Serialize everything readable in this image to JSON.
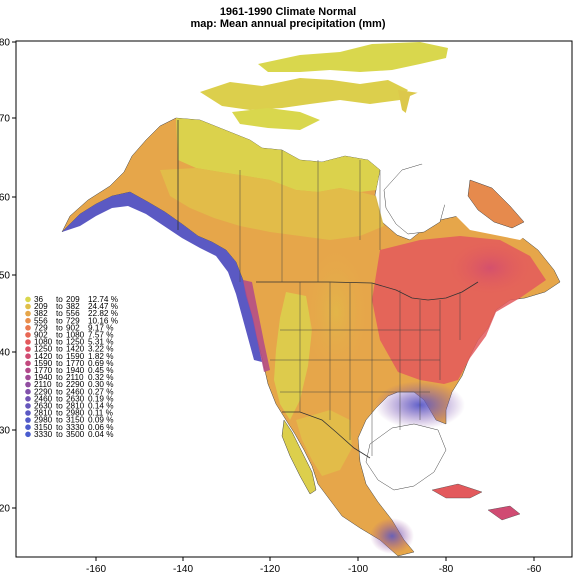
{
  "title": "1961-1990 Climate Normal",
  "subtitle": "map: Mean annual precipitation (mm)",
  "axes": {
    "x_ticks": [
      "-160",
      "-140",
      "-120",
      "-100",
      "-80",
      "-60"
    ],
    "y_ticks": [
      "80",
      "70",
      "60",
      "50",
      "40",
      "30",
      "20"
    ]
  },
  "legend": [
    {
      "from": "36",
      "to": "209",
      "pct": "12.74 %",
      "color": "#d9d74d"
    },
    {
      "from": "209",
      "to": "382",
      "pct": "24.47 %",
      "color": "#e0bf49"
    },
    {
      "from": "382",
      "to": "556",
      "pct": "22.82 %",
      "color": "#e6a64a"
    },
    {
      "from": "556",
      "to": "729",
      "pct": "10.16 %",
      "color": "#e98f4c"
    },
    {
      "from": "729",
      "to": "902",
      "pct": "9.17 %",
      "color": "#ea7a4f"
    },
    {
      "from": "902",
      "to": "1080",
      "pct": "7.57 %",
      "color": "#e86754"
    },
    {
      "from": "1080",
      "to": "1250",
      "pct": "5.31 %",
      "color": "#e3595c"
    },
    {
      "from": "1250",
      "to": "1420",
      "pct": "3.22 %",
      "color": "#dc5066"
    },
    {
      "from": "1420",
      "to": "1590",
      "pct": "1.82 %",
      "color": "#d04b72"
    },
    {
      "from": "1590",
      "to": "1770",
      "pct": "0.69 %",
      "color": "#c2497e"
    },
    {
      "from": "1770",
      "to": "1940",
      "pct": "0.45 %",
      "color": "#b2498a"
    },
    {
      "from": "1940",
      "to": "2110",
      "pct": "0.32 %",
      "color": "#a14b96"
    },
    {
      "from": "2110",
      "to": "2290",
      "pct": "0.30 %",
      "color": "#914ea1"
    },
    {
      "from": "2290",
      "to": "2460",
      "pct": "0.27 %",
      "color": "#8151ab"
    },
    {
      "from": "2460",
      "to": "2630",
      "pct": "0.19 %",
      "color": "#7354b4"
    },
    {
      "from": "2630",
      "to": "2810",
      "pct": "0.14 %",
      "color": "#6657bc"
    },
    {
      "from": "2810",
      "to": "2980",
      "pct": "0.11 %",
      "color": "#5b59c3"
    },
    {
      "from": "2980",
      "to": "3150",
      "pct": "0.09 %",
      "color": "#535bc8"
    },
    {
      "from": "3150",
      "to": "3330",
      "pct": "0.06 %",
      "color": "#4d5ccc"
    },
    {
      "from": "3330",
      "to": "3500",
      "pct": "0.04 %",
      "color": "#4a5dcf"
    }
  ]
}
